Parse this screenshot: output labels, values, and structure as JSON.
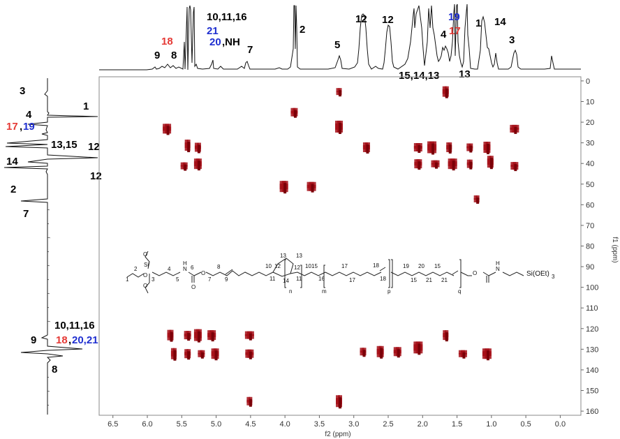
{
  "colors": {
    "black": "#111111",
    "red": "#e53935",
    "blue": "#1f2fd0",
    "crosspeak": "#a40e16",
    "frame": "#888888"
  },
  "chart_data": {
    "type": "heatmap",
    "title": "",
    "xlabel": "f2 (ppm)",
    "ylabel": "f1 (ppm)",
    "xlim": [
      6.7,
      -0.3
    ],
    "ylim": [
      -2,
      162
    ],
    "x_ticks": [
      "6.5",
      "6.0",
      "5.5",
      "5.0",
      "4.5",
      "4.0",
      "3.5",
      "3.0",
      "2.5",
      "2.0",
      "1.5",
      "1.0",
      "0.5",
      "0.0"
    ],
    "y_ticks": [
      "0",
      "10",
      "20",
      "30",
      "40",
      "50",
      "60",
      "70",
      "80",
      "90",
      "100",
      "110",
      "120",
      "130",
      "140",
      "150",
      "160"
    ],
    "grid": false,
    "crosspeaks": [
      {
        "x": 3.2,
        "y": 6
      },
      {
        "x": 1.65,
        "y": 6
      },
      {
        "x": 3.85,
        "y": 16
      },
      {
        "x": 3.2,
        "y": 23
      },
      {
        "x": 5.7,
        "y": 24
      },
      {
        "x": 0.65,
        "y": 24
      },
      {
        "x": 5.4,
        "y": 32
      },
      {
        "x": 5.25,
        "y": 33
      },
      {
        "x": 5.45,
        "y": 42
      },
      {
        "x": 5.25,
        "y": 41
      },
      {
        "x": 2.05,
        "y": 33
      },
      {
        "x": 1.85,
        "y": 33
      },
      {
        "x": 1.6,
        "y": 33
      },
      {
        "x": 1.3,
        "y": 33
      },
      {
        "x": 1.05,
        "y": 33
      },
      {
        "x": 2.05,
        "y": 41
      },
      {
        "x": 1.8,
        "y": 41
      },
      {
        "x": 1.55,
        "y": 41
      },
      {
        "x": 1.3,
        "y": 41
      },
      {
        "x": 1.0,
        "y": 40
      },
      {
        "x": 2.8,
        "y": 33
      },
      {
        "x": 0.65,
        "y": 42
      },
      {
        "x": 4.0,
        "y": 52
      },
      {
        "x": 3.6,
        "y": 52
      },
      {
        "x": 1.2,
        "y": 58
      },
      {
        "x": 5.65,
        "y": 124
      },
      {
        "x": 5.4,
        "y": 124
      },
      {
        "x": 5.25,
        "y": 124
      },
      {
        "x": 5.05,
        "y": 124
      },
      {
        "x": 4.5,
        "y": 124
      },
      {
        "x": 5.6,
        "y": 133
      },
      {
        "x": 5.4,
        "y": 133
      },
      {
        "x": 5.2,
        "y": 133
      },
      {
        "x": 5.0,
        "y": 133
      },
      {
        "x": 4.5,
        "y": 133
      },
      {
        "x": 2.05,
        "y": 130
      },
      {
        "x": 1.65,
        "y": 124
      },
      {
        "x": 2.85,
        "y": 132
      },
      {
        "x": 2.6,
        "y": 132
      },
      {
        "x": 2.35,
        "y": 132
      },
      {
        "x": 1.4,
        "y": 133
      },
      {
        "x": 1.05,
        "y": 133
      },
      {
        "x": 4.5,
        "y": 156
      },
      {
        "x": 3.2,
        "y": 156
      }
    ]
  },
  "top_labels": [
    {
      "text": "10,11,16",
      "color": "black"
    },
    {
      "text": "21",
      "color": "blue"
    },
    {
      "text": "20",
      "color": "blue"
    },
    {
      "text": ",NH",
      "color": "black"
    },
    {
      "text": "18",
      "color": "red"
    },
    {
      "text": "9",
      "color": "black"
    },
    {
      "text": "8",
      "color": "black"
    },
    {
      "text": "7",
      "color": "black"
    },
    {
      "text": "2",
      "color": "black"
    },
    {
      "text": "5",
      "color": "black"
    },
    {
      "text": "12",
      "color": "black"
    },
    {
      "text": "12",
      "color": "black"
    },
    {
      "text": "19",
      "color": "blue"
    },
    {
      "text": "4",
      "color": "black"
    },
    {
      "text": "17",
      "color": "red"
    },
    {
      "text": "1",
      "color": "black"
    },
    {
      "text": "14",
      "color": "black"
    },
    {
      "text": "3",
      "color": "black"
    },
    {
      "text": "15,14,13",
      "color": "black"
    },
    {
      "text": "13",
      "color": "black"
    }
  ],
  "left_labels": [
    {
      "text": "3",
      "color": "black"
    },
    {
      "text": "1",
      "color": "black"
    },
    {
      "text": "4",
      "color": "black"
    },
    {
      "text": "17",
      "color": "red"
    },
    {
      "text": ",",
      "color": "black"
    },
    {
      "text": "19",
      "color": "blue"
    },
    {
      "text": "13,15",
      "color": "black"
    },
    {
      "text": "12",
      "color": "black"
    },
    {
      "text": "14",
      "color": "black"
    },
    {
      "text": "12",
      "color": "black"
    },
    {
      "text": "2",
      "color": "black"
    },
    {
      "text": "7",
      "color": "black"
    },
    {
      "text": "10,11,16",
      "color": "black"
    },
    {
      "text": "9",
      "color": "black"
    },
    {
      "text": "18",
      "color": "red"
    },
    {
      "text": ",",
      "color": "black"
    },
    {
      "text": "20,21",
      "color": "blue"
    },
    {
      "text": "8",
      "color": "black"
    }
  ],
  "structure_labels": {
    "n1": "1",
    "n2": "2",
    "n3": "3",
    "n4": "4",
    "n5": "5",
    "n6": "6",
    "n7": "7",
    "n8": "8",
    "n9": "9",
    "n10": "10",
    "n11": "11",
    "n12a": "12",
    "n12b": "12",
    "n13a": "13",
    "n13b": "13",
    "n14": "14",
    "n10b": "10",
    "n11b": "11",
    "n15": "15",
    "n16": "16",
    "n17a": "17",
    "n17b": "17",
    "n18a": "18",
    "n18b": "18",
    "n19": "19",
    "n20": "20",
    "n15b": "15",
    "n21": "21",
    "n15c": "15",
    "n21b": "21",
    "si": "Si",
    "o1": "O",
    "o2": "O",
    "o3": "O",
    "o4": "O",
    "o5": "O",
    "o6": "O",
    "nh1": "N",
    "h1": "H",
    "nh2": "N",
    "h2": "H",
    "n_sub": "n",
    "m_sub": "m",
    "p_sub": "p",
    "q_sub": "q",
    "end_group": "Si(OEt)",
    "end_sub": "3"
  }
}
